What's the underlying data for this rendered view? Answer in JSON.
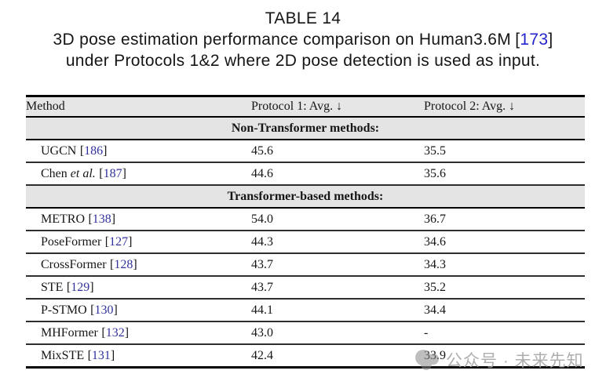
{
  "heading": {
    "title": "TABLE 14",
    "caption_line1": "3D pose estimation performance comparison on Human3.6M",
    "cite_open": "[",
    "cite": "173",
    "cite_close": "]",
    "caption_line2": "under Protocols 1&2 where 2D pose detection is used as input."
  },
  "table": {
    "cite_open": "[",
    "cite_close": "]",
    "columns": [
      "Method",
      "Protocol 1: Avg. ↓",
      "Protocol 2: Avg. ↓"
    ],
    "sections": [
      {
        "label": "Non-Transformer methods:",
        "rows": [
          {
            "name": "UGCN",
            "etal": "",
            "cite": "186",
            "p1": "45.6",
            "p2": "35.5"
          },
          {
            "name": "Chen",
            "etal": "et al.",
            "cite": "187",
            "p1": "44.6",
            "p2": "35.6"
          }
        ]
      },
      {
        "label": "Transformer-based methods:",
        "rows": [
          {
            "name": "METRO",
            "etal": "",
            "cite": "138",
            "p1": "54.0",
            "p2": "36.7"
          },
          {
            "name": "PoseFormer",
            "etal": "",
            "cite": "127",
            "p1": "44.3",
            "p2": "34.6"
          },
          {
            "name": "CrossFormer",
            "etal": "",
            "cite": "128",
            "p1": "43.7",
            "p2": "34.3"
          },
          {
            "name": "STE",
            "etal": "",
            "cite": "129",
            "p1": "43.7",
            "p2": "35.2"
          },
          {
            "name": "P-STMO",
            "etal": "",
            "cite": "130",
            "p1": "44.1",
            "p2": "34.4"
          },
          {
            "name": "MHFormer",
            "etal": "",
            "cite": "132",
            "p1": "43.0",
            "p2": "-"
          },
          {
            "name": "MixSTE",
            "etal": "",
            "cite": "131",
            "p1": "42.4",
            "p2": "33.9"
          }
        ]
      }
    ]
  },
  "watermark": {
    "text": "公众号 · 未来先知"
  },
  "colors": {
    "page_bg": "#ffffff",
    "text": "#161616",
    "header_bg": "#e6e6e6",
    "section_bg": "#e4e4e4",
    "border_dark": "#000000",
    "row_line": "#2e2e2e",
    "caption_cite": "#2323cc",
    "table_cite": "#32329e",
    "watermark": "#a8a8a8"
  }
}
